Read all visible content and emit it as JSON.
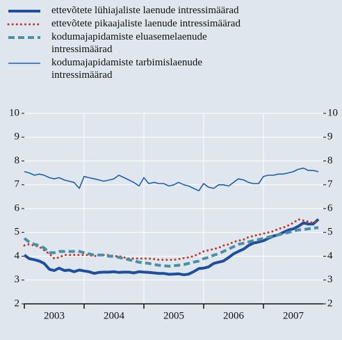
{
  "chart_data": {
    "type": "line",
    "x": [
      2003.0,
      2003.08,
      2003.17,
      2003.25,
      2003.33,
      2003.42,
      2003.5,
      2003.58,
      2003.67,
      2003.75,
      2003.83,
      2003.92,
      2004.0,
      2004.08,
      2004.17,
      2004.25,
      2004.33,
      2004.42,
      2004.5,
      2004.58,
      2004.67,
      2004.75,
      2004.83,
      2004.92,
      2005.0,
      2005.08,
      2005.17,
      2005.25,
      2005.33,
      2005.42,
      2005.5,
      2005.58,
      2005.67,
      2005.75,
      2005.83,
      2005.92,
      2006.0,
      2006.08,
      2006.17,
      2006.25,
      2006.33,
      2006.42,
      2006.5,
      2006.58,
      2006.67,
      2006.75,
      2006.83,
      2006.92,
      2007.0,
      2007.08,
      2007.17,
      2007.25,
      2007.33,
      2007.42,
      2007.5,
      2007.58,
      2007.67,
      2007.75,
      2007.83,
      2007.92
    ],
    "xlim": [
      2003,
      2008
    ],
    "xticks": [
      {
        "value": 2003.5,
        "label": "2003"
      },
      {
        "value": 2004.5,
        "label": "2004"
      },
      {
        "value": 2005.5,
        "label": "2005"
      },
      {
        "value": 2006.5,
        "label": "2006"
      },
      {
        "value": 2007.5,
        "label": "2007"
      }
    ],
    "ylim": [
      2,
      10
    ],
    "yticks": [
      2,
      3,
      4,
      5,
      6,
      7,
      8,
      9,
      10
    ],
    "y2lim": [
      2,
      10
    ],
    "y2ticks": [
      2,
      3,
      4,
      5,
      6,
      7,
      8,
      9,
      10
    ],
    "grid": true,
    "series": [
      {
        "name": "ettevõtete lühiajaliste laenude intressimäärad",
        "color": "#1f4e9c",
        "style": "thick",
        "values": [
          4.05,
          3.9,
          3.85,
          3.8,
          3.7,
          3.45,
          3.4,
          3.5,
          3.4,
          3.42,
          3.35,
          3.42,
          3.38,
          3.35,
          3.28,
          3.32,
          3.33,
          3.33,
          3.35,
          3.32,
          3.33,
          3.33,
          3.3,
          3.35,
          3.33,
          3.32,
          3.3,
          3.28,
          3.28,
          3.24,
          3.25,
          3.26,
          3.22,
          3.25,
          3.35,
          3.48,
          3.5,
          3.55,
          3.7,
          3.75,
          3.8,
          3.95,
          4.1,
          4.2,
          4.3,
          4.45,
          4.55,
          4.6,
          4.65,
          4.75,
          4.85,
          4.9,
          5.0,
          5.1,
          5.15,
          5.25,
          5.4,
          5.35,
          5.35,
          5.55
        ]
      },
      {
        "name": "ettevõtete pikaajaliste laenude intressimäärad",
        "color": "#c0392b",
        "style": "dotted",
        "values": [
          4.45,
          4.5,
          4.45,
          4.4,
          4.25,
          4.1,
          3.9,
          3.95,
          4.05,
          4.05,
          4.05,
          4.05,
          4.05,
          4.05,
          4.0,
          4.05,
          4.05,
          4.05,
          4.0,
          4.0,
          3.95,
          3.9,
          3.9,
          3.9,
          3.9,
          3.9,
          3.88,
          3.85,
          3.85,
          3.85,
          3.85,
          3.88,
          3.92,
          3.95,
          4.0,
          4.1,
          4.2,
          4.25,
          4.3,
          4.35,
          4.45,
          4.5,
          4.6,
          4.65,
          4.7,
          4.8,
          4.85,
          4.9,
          4.95,
          5.0,
          5.05,
          5.15,
          5.2,
          5.3,
          5.4,
          5.55,
          5.5,
          5.45,
          5.4,
          5.5
        ]
      },
      {
        "name": "kodumajapidamiste eluasemelaenude intressimäärad",
        "color": "#4a8fa3",
        "style": "dashed",
        "values": [
          4.75,
          4.6,
          4.5,
          4.45,
          4.35,
          4.15,
          4.15,
          4.2,
          4.2,
          4.2,
          4.2,
          4.2,
          4.15,
          4.1,
          4.05,
          4.05,
          4.05,
          4.0,
          4.0,
          3.95,
          3.9,
          3.85,
          3.8,
          3.75,
          3.72,
          3.7,
          3.65,
          3.62,
          3.6,
          3.58,
          3.6,
          3.62,
          3.65,
          3.7,
          3.75,
          3.8,
          3.9,
          3.95,
          4.05,
          4.1,
          4.2,
          4.3,
          4.4,
          4.5,
          4.55,
          4.6,
          4.65,
          4.7,
          4.75,
          4.8,
          4.85,
          4.9,
          4.95,
          5.0,
          5.05,
          5.1,
          5.12,
          5.15,
          5.18,
          5.2
        ]
      },
      {
        "name": "kodumajapidamiste tarbimislaenude intressimäärad",
        "color": "#1f5fa8",
        "style": "thin",
        "values": [
          7.55,
          7.5,
          7.4,
          7.45,
          7.4,
          7.3,
          7.25,
          7.3,
          7.2,
          7.15,
          7.1,
          6.85,
          7.35,
          7.3,
          7.25,
          7.2,
          7.15,
          7.2,
          7.25,
          7.4,
          7.3,
          7.2,
          7.1,
          6.95,
          7.3,
          7.05,
          7.1,
          7.05,
          7.05,
          6.95,
          7.0,
          7.1,
          7.0,
          6.95,
          6.85,
          6.75,
          7.05,
          6.9,
          6.85,
          7.0,
          7.0,
          6.95,
          7.1,
          7.25,
          7.2,
          7.1,
          7.05,
          7.05,
          7.35,
          7.4,
          7.4,
          7.45,
          7.45,
          7.5,
          7.55,
          7.65,
          7.7,
          7.6,
          7.6,
          7.55
        ]
      }
    ]
  }
}
